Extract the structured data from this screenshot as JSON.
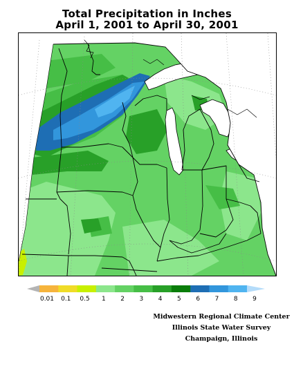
{
  "title": {
    "line1": "Total Precipitation in Inches",
    "line2": "April 1, 2001 to April 30, 2001"
  },
  "legend": {
    "labels": [
      "0.01",
      "0.1",
      "0.5",
      "1",
      "2",
      "3",
      "4",
      "5",
      "6",
      "7",
      "8",
      "9"
    ],
    "colors": [
      "#b4b4b4",
      "#f6b43c",
      "#f0dc28",
      "#c8f000",
      "#8ce68c",
      "#64d264",
      "#46be46",
      "#28a028",
      "#0a7d0a",
      "#1e6eb4",
      "#3296dc",
      "#50b4f0",
      "#b4dcfa"
    ]
  },
  "credits": {
    "line1": "Midwestern Regional Climate Center",
    "line2": "Illinois State Water Survey",
    "line3": "Champaign, Illinois"
  },
  "colors": {
    "land_base": "#64d264",
    "light_green": "#8ce68c",
    "medium_green": "#46be46",
    "dark_green": "#28a028",
    "darkest_green": "#0a7d0a",
    "blue": "#1e6eb4",
    "mid_blue": "#3296dc",
    "light_blue": "#50b4f0",
    "yellow": "#c8f000",
    "outline": "#000000",
    "graticule": "#888888"
  }
}
